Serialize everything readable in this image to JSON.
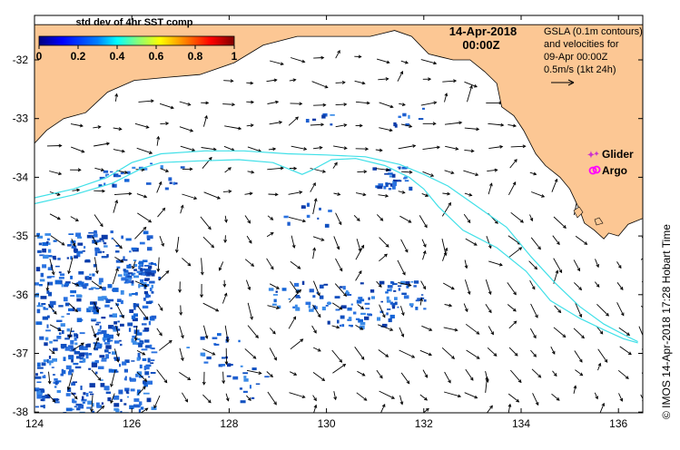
{
  "colorbar": {
    "title": "std dev of 4hr SST comp",
    "ticks": [
      "0",
      "0.2",
      "0.4",
      "0.6",
      "0.8",
      "1"
    ],
    "colors": [
      "#00007f",
      "#0000ff",
      "#0080ff",
      "#00ffff",
      "#80ff80",
      "#ffff00",
      "#ff8000",
      "#ff0000",
      "#7f0000"
    ]
  },
  "date": {
    "line1": "14-Apr-2018",
    "line2": "00:00Z"
  },
  "gsla_note": {
    "line1": "GSLA (0.1m contours)",
    "line2": "and velocities for",
    "line3": "09-Apr 00:00Z",
    "line4": "0.5m/s (1kt 24h)"
  },
  "legend": {
    "glider": "Glider",
    "argo": "Argo",
    "glider_color": "#cc33cc",
    "argo_color": "#ff00ff"
  },
  "credit": "© IMOS 14-Apr-2018 17:28 Hobart Time",
  "axes": {
    "x_ticks": [
      "124",
      "126",
      "128",
      "130",
      "132",
      "134",
      "136"
    ],
    "y_ticks": [
      "-32",
      "-33",
      "-34",
      "-35",
      "-36",
      "-37",
      "-38"
    ]
  },
  "colors": {
    "land": "#fcc794",
    "contour": "#40e0e8",
    "sst_patch": "#1e5fd0"
  },
  "map_data": {
    "lon_range": [
      124,
      136.5
    ],
    "lat_range": [
      -38.1,
      -31.4
    ],
    "contours": [
      [
        [
          124.0,
          -34.45
        ],
        [
          124.8,
          -34.3
        ],
        [
          125.6,
          -34.1
        ],
        [
          126.2,
          -33.85
        ],
        [
          126.6,
          -33.75
        ],
        [
          127.4,
          -33.72
        ],
        [
          128.2,
          -33.7
        ],
        [
          128.9,
          -33.75
        ],
        [
          129.5,
          -33.95
        ],
        [
          129.7,
          -33.88
        ],
        [
          130.1,
          -33.7
        ],
        [
          130.6,
          -33.68
        ],
        [
          131.2,
          -33.8
        ],
        [
          131.7,
          -34.0
        ],
        [
          132.0,
          -34.2
        ],
        [
          132.3,
          -34.5
        ],
        [
          132.8,
          -34.9
        ],
        [
          133.5,
          -35.2
        ],
        [
          134.1,
          -35.6
        ],
        [
          134.6,
          -36.1
        ],
        [
          135.2,
          -36.4
        ],
        [
          135.7,
          -36.6
        ],
        [
          136.1,
          -36.75
        ],
        [
          136.4,
          -36.82
        ]
      ],
      [
        [
          124.0,
          -34.35
        ],
        [
          124.8,
          -34.2
        ],
        [
          125.5,
          -34.0
        ],
        [
          126.0,
          -33.75
        ],
        [
          126.6,
          -33.6
        ],
        [
          127.5,
          -33.55
        ],
        [
          128.3,
          -33.55
        ],
        [
          129.2,
          -33.6
        ],
        [
          130.0,
          -33.62
        ],
        [
          130.8,
          -33.65
        ],
        [
          131.5,
          -33.78
        ],
        [
          132.0,
          -33.95
        ],
        [
          132.5,
          -34.15
        ],
        [
          133.1,
          -34.5
        ],
        [
          133.7,
          -34.85
        ],
        [
          134.2,
          -35.35
        ],
        [
          134.7,
          -35.8
        ],
        [
          135.2,
          -36.2
        ],
        [
          135.7,
          -36.5
        ],
        [
          136.2,
          -36.72
        ],
        [
          136.4,
          -36.8
        ]
      ]
    ],
    "land_outline": [
      [
        124.0,
        -31.4
      ],
      [
        136.5,
        -31.4
      ],
      [
        136.5,
        -34.7
      ],
      [
        136.2,
        -34.8
      ],
      [
        136.0,
        -35.0
      ],
      [
        135.8,
        -34.95
      ],
      [
        135.7,
        -35.05
      ],
      [
        135.5,
        -34.9
      ],
      [
        135.3,
        -34.78
      ],
      [
        135.2,
        -34.55
      ],
      [
        135.0,
        -34.2
      ],
      [
        134.8,
        -34.0
      ],
      [
        134.5,
        -33.8
      ],
      [
        134.3,
        -33.6
      ],
      [
        134.05,
        -33.2
      ],
      [
        133.85,
        -32.95
      ],
      [
        133.6,
        -32.8
      ],
      [
        133.5,
        -32.4
      ],
      [
        133.25,
        -32.2
      ],
      [
        132.95,
        -32.0
      ],
      [
        132.6,
        -32.0
      ],
      [
        132.35,
        -31.95
      ],
      [
        132.1,
        -31.9
      ],
      [
        131.75,
        -31.6
      ],
      [
        131.4,
        -31.5
      ],
      [
        131.15,
        -31.55
      ],
      [
        130.9,
        -31.6
      ],
      [
        130.5,
        -31.6
      ],
      [
        130.0,
        -31.6
      ],
      [
        129.4,
        -31.6
      ],
      [
        128.7,
        -31.75
      ],
      [
        128.1,
        -32.05
      ],
      [
        127.4,
        -32.25
      ],
      [
        126.7,
        -32.3
      ],
      [
        126.05,
        -32.35
      ],
      [
        125.5,
        -32.55
      ],
      [
        125.05,
        -32.9
      ],
      [
        124.6,
        -33.0
      ],
      [
        124.25,
        -33.2
      ],
      [
        124.0,
        -33.42
      ]
    ],
    "floats": [
      {
        "type": "glider",
        "lon": 135.55,
        "lat": -33.6
      },
      {
        "type": "argo",
        "lon": 135.55,
        "lat": -33.87
      }
    ]
  }
}
